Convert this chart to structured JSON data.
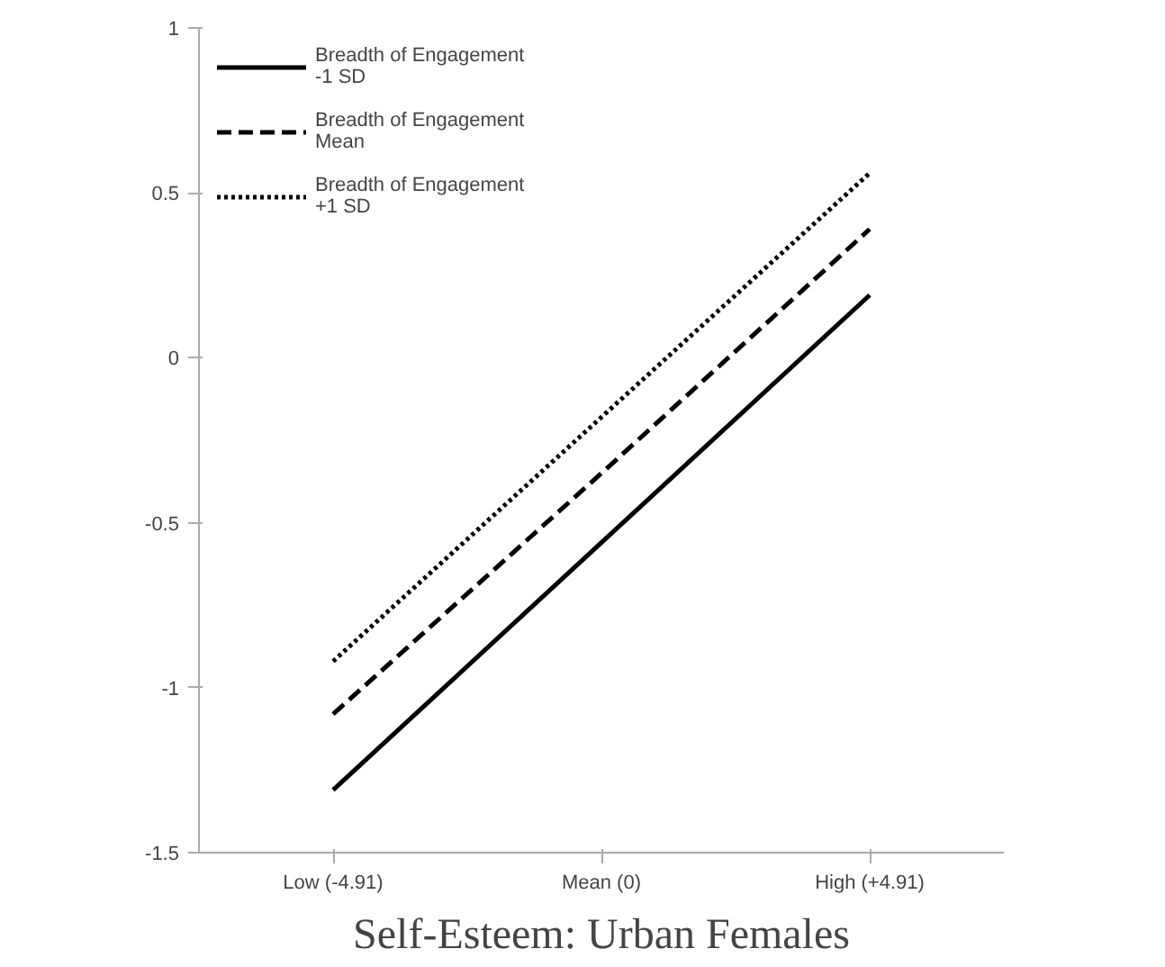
{
  "chart_data": {
    "type": "line",
    "title": "Self-Esteem: Urban Females",
    "categories": [
      "Low (-4.91)",
      "Mean (0)",
      "High (+4.91)"
    ],
    "series": [
      {
        "name": "Breadth of Engagement -1 SD",
        "color": "#000000",
        "line_style": "solid",
        "values": [
          -1.31,
          -0.56,
          0.19
        ]
      },
      {
        "name": "Breadth of Engagement Mean",
        "color": "#000000",
        "line_style": "dashed",
        "values": [
          -1.08,
          -0.35,
          0.39
        ]
      },
      {
        "name": "Breadth of Engagement +1 SD",
        "color": "#000000",
        "line_style": "dotted",
        "values": [
          -0.92,
          -0.18,
          0.56
        ]
      }
    ],
    "ylim": [
      -1.5,
      1
    ],
    "yticks": [
      -1.5,
      -1,
      -0.5,
      0,
      0.5,
      1
    ],
    "grid": false,
    "legend": "top left",
    "marker": "none"
  }
}
